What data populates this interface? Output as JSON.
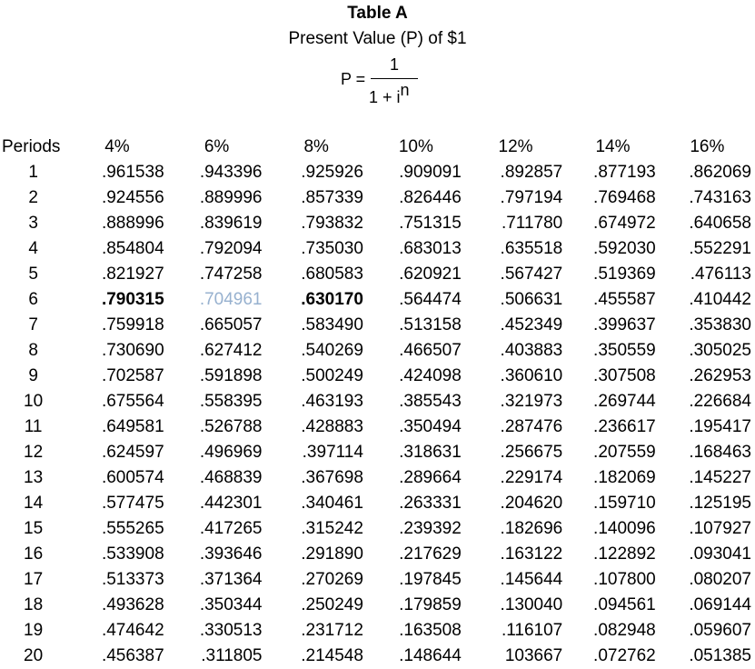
{
  "header": {
    "title": "Table A",
    "subtitle": "Present Value (P) of $1",
    "formula": {
      "lhs": "P =",
      "numerator": "1",
      "denominator_base": "1 + i",
      "denominator_exponent": "n"
    }
  },
  "table": {
    "columns": [
      "Periods",
      "4%",
      "6%",
      "8%",
      "10%",
      "12%",
      "14%",
      "16%"
    ],
    "rows": [
      [
        "1",
        ".961538",
        ".943396",
        ".925926",
        ".909091",
        ".892857",
        ".877193",
        ".862069"
      ],
      [
        "2",
        ".924556",
        ".889996",
        ".857339",
        ".826446",
        ".797194",
        ".769468",
        ".743163"
      ],
      [
        "3",
        ".888996",
        ".839619",
        ".793832",
        ".751315",
        ".711780",
        ".674972",
        ".640658"
      ],
      [
        "4",
        ".854804",
        ".792094",
        ".735030",
        ".683013",
        ".635518",
        ".592030",
        ".552291"
      ],
      [
        "5",
        ".821927",
        ".747258",
        ".680583",
        ".620921",
        ".567427",
        ".519369",
        ".476113"
      ],
      [
        "6",
        ".790315",
        ".704961",
        ".630170",
        ".564474",
        ".506631",
        ".455587",
        ".410442"
      ],
      [
        "7",
        ".759918",
        ".665057",
        ".583490",
        ".513158",
        ".452349",
        ".399637",
        ".353830"
      ],
      [
        "8",
        ".730690",
        ".627412",
        ".540269",
        ".466507",
        ".403883",
        ".350559",
        ".305025"
      ],
      [
        "9",
        ".702587",
        ".591898",
        ".500249",
        ".424098",
        ".360610",
        ".307508",
        ".262953"
      ],
      [
        "10",
        ".675564",
        ".558395",
        ".463193",
        ".385543",
        ".321973",
        ".269744",
        ".226684"
      ],
      [
        "11",
        ".649581",
        ".526788",
        ".428883",
        ".350494",
        ".287476",
        ".236617",
        ".195417"
      ],
      [
        "12",
        ".624597",
        ".496969",
        ".397114",
        ".318631",
        ".256675",
        ".207559",
        ".168463"
      ],
      [
        "13",
        ".600574",
        ".468839",
        ".367698",
        ".289664",
        ".229174",
        ".182069",
        ".145227"
      ],
      [
        "14",
        ".577475",
        ".442301",
        ".340461",
        ".263331",
        ".204620",
        ".159710",
        ".125195"
      ],
      [
        "15",
        ".555265",
        ".417265",
        ".315242",
        ".239392",
        ".182696",
        ".140096",
        ".107927"
      ],
      [
        "16",
        ".533908",
        ".393646",
        ".291890",
        ".217629",
        ".163122",
        ".122892",
        ".093041"
      ],
      [
        "17",
        ".513373",
        ".371364",
        ".270269",
        ".197845",
        ".145644",
        ".107800",
        ".080207"
      ],
      [
        "18",
        ".493628",
        ".350344",
        ".250249",
        ".179859",
        ".130040",
        ".094561",
        ".069144"
      ],
      [
        "19",
        ".474642",
        ".330513",
        ".231712",
        ".163508",
        ".116107",
        ".082948",
        ".059607"
      ],
      [
        "20",
        ".456387",
        ".311805",
        ".214548",
        ".148644",
        "103667",
        ".072762",
        ".051385"
      ]
    ],
    "emphasis": {
      "bold_cells": [
        [
          5,
          1
        ],
        [
          5,
          3
        ]
      ],
      "faded_cells": [
        [
          5,
          2
        ]
      ],
      "faded_color": "#97b1cf"
    }
  }
}
